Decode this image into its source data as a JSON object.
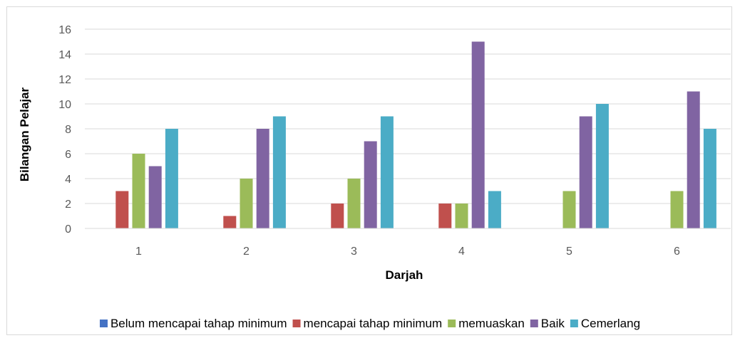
{
  "chart_data": {
    "type": "bar",
    "title": "",
    "xlabel": "Darjah",
    "ylabel": "Bilangan Pelajar",
    "categories": [
      "1",
      "2",
      "3",
      "4",
      "5",
      "6"
    ],
    "ylim": [
      0,
      16
    ],
    "yticks": [
      0,
      2,
      4,
      6,
      8,
      10,
      12,
      14,
      16
    ],
    "grid": true,
    "legend_position": "bottom",
    "series": [
      {
        "name": "Belum mencapai tahap minimum",
        "color": "#4472C4",
        "values": [
          0,
          0,
          0,
          0,
          0,
          0
        ]
      },
      {
        "name": "mencapai tahap minimum",
        "color": "#C0504D",
        "values": [
          3,
          1,
          2,
          2,
          0,
          0
        ]
      },
      {
        "name": "memuaskan",
        "color": "#9BBB59",
        "values": [
          6,
          4,
          4,
          2,
          3,
          3
        ]
      },
      {
        "name": "Baik",
        "color": "#8064A2",
        "values": [
          5,
          8,
          7,
          15,
          9,
          11
        ]
      },
      {
        "name": "Cemerlang",
        "color": "#4BACC6",
        "values": [
          8,
          9,
          9,
          3,
          10,
          8
        ]
      }
    ]
  }
}
